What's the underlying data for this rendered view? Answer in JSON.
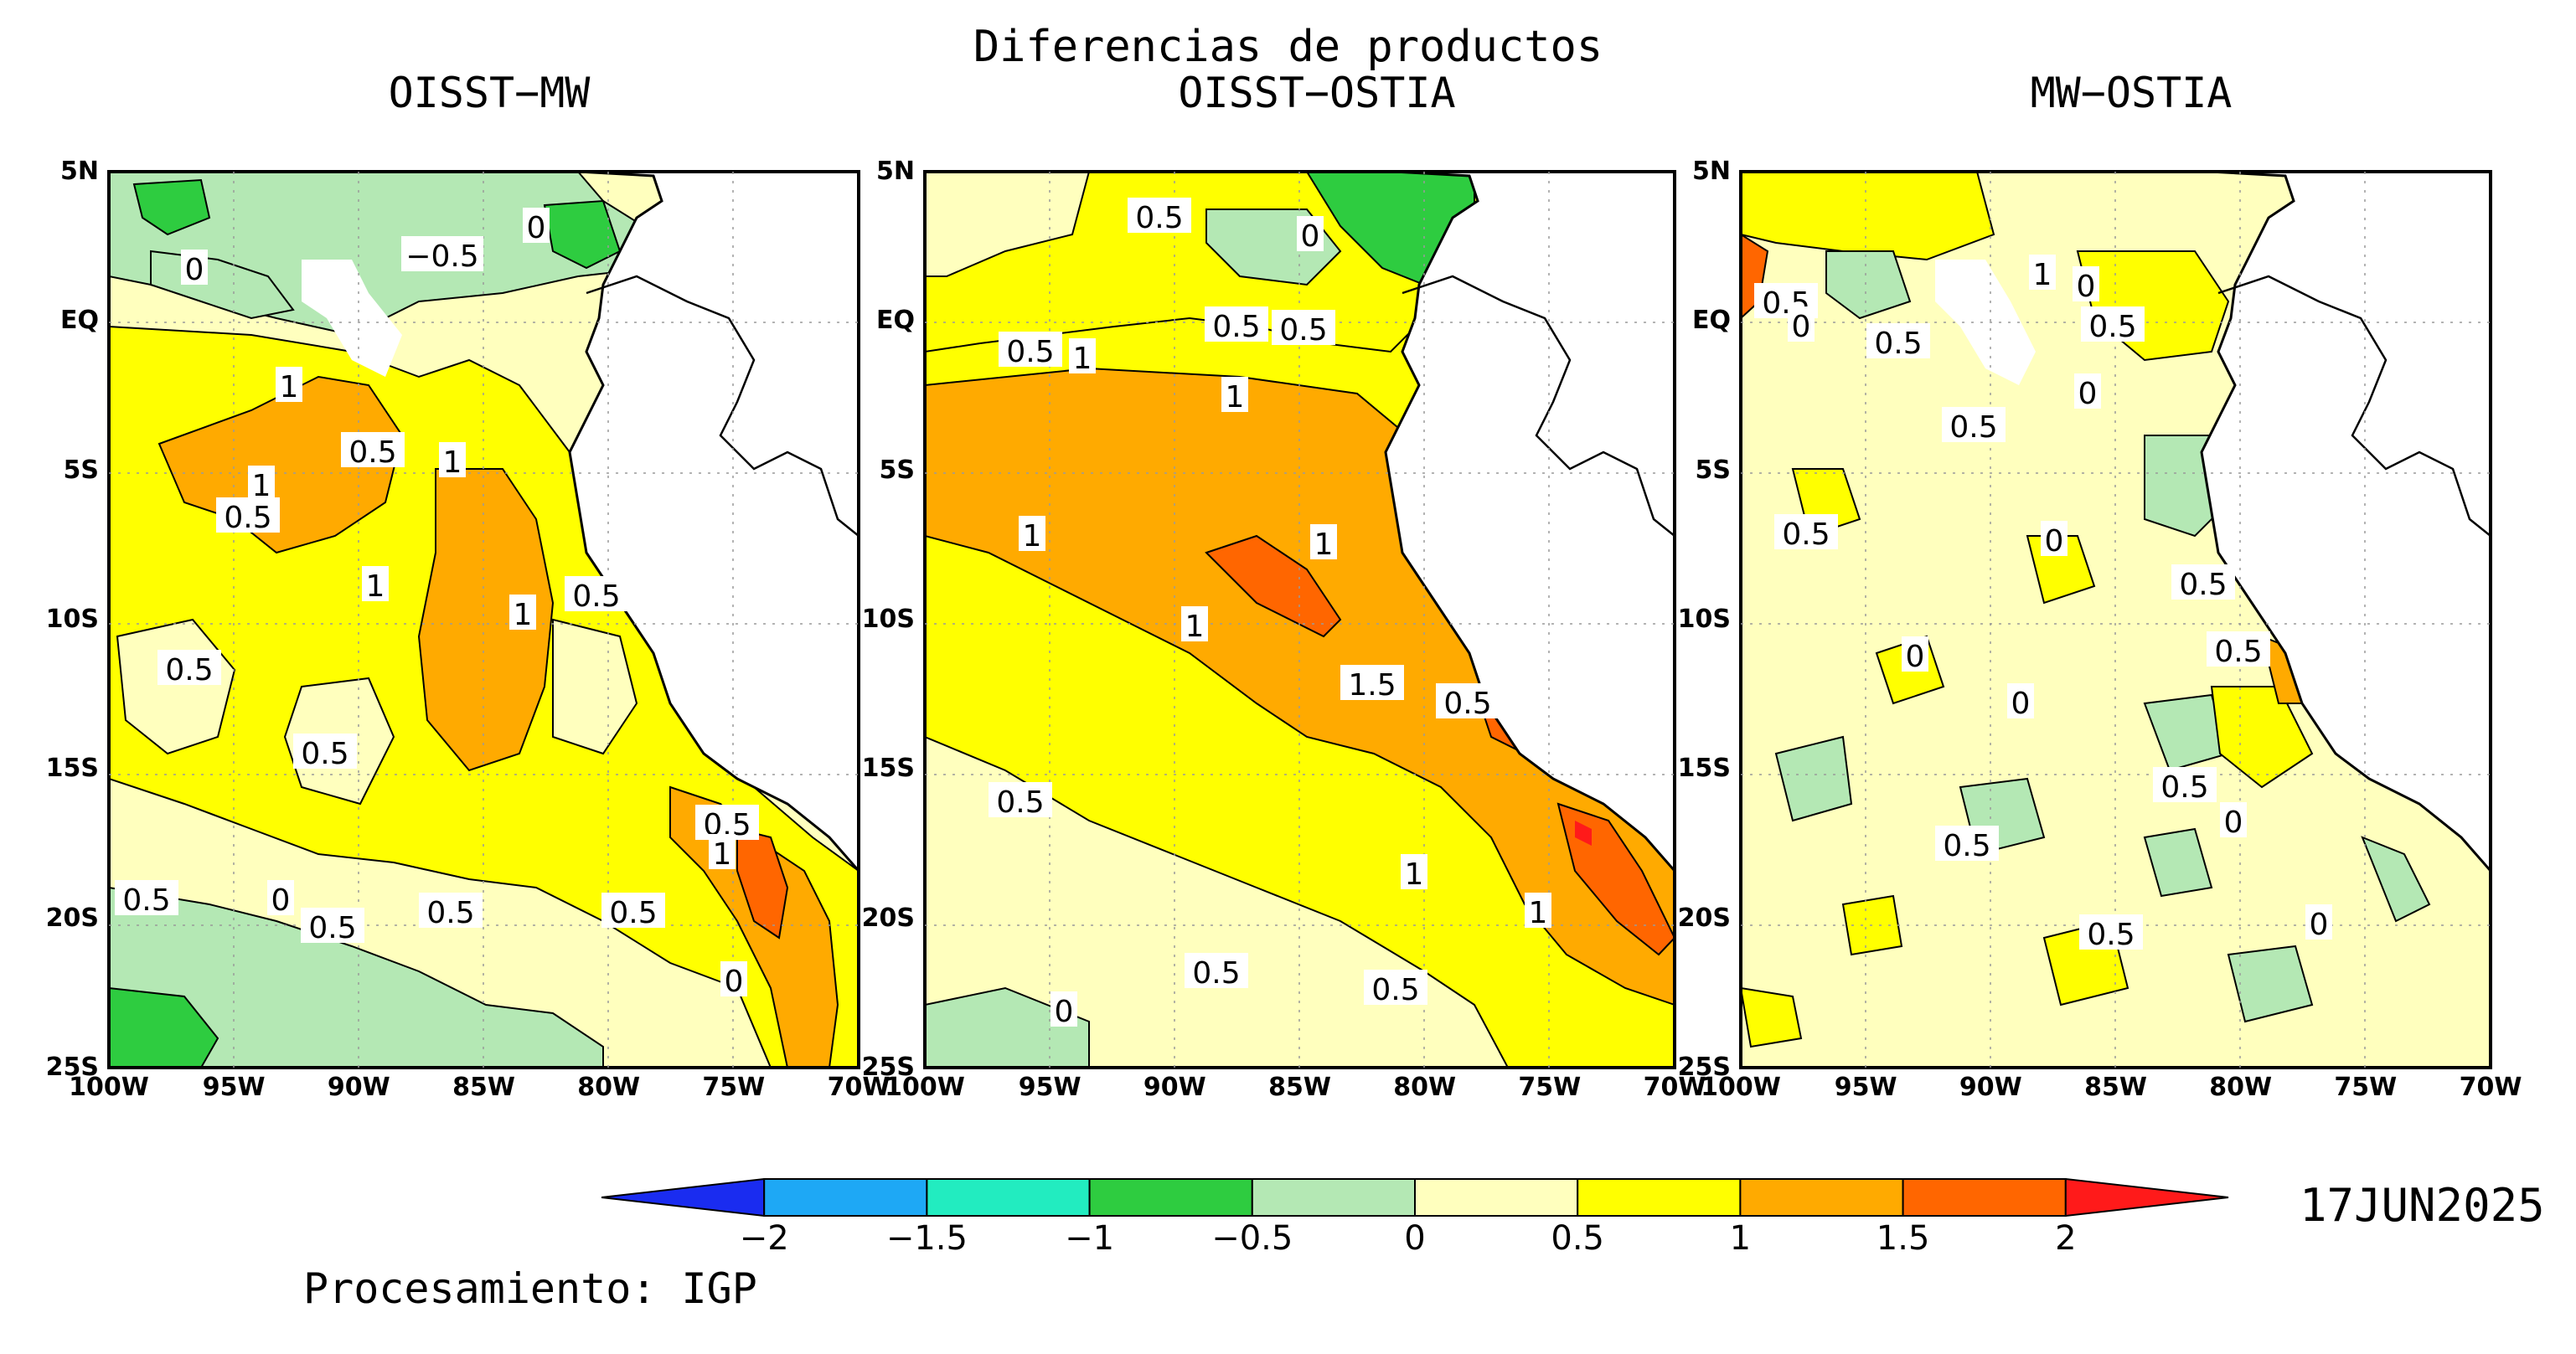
{
  "main_title": "Diferencias de productos",
  "panels": [
    {
      "title": "OISST−MW",
      "contour_labels": [
        "0",
        "−0.5",
        "0",
        "1",
        "0.5",
        "1",
        "1",
        "0.5",
        "1",
        "1",
        "0.5",
        "0.5",
        "0.5",
        "0",
        "0.5",
        "0.5",
        "0.5",
        "0.5",
        "1",
        "0",
        "0.5"
      ]
    },
    {
      "title": "OISST−OSTIA",
      "contour_labels": [
        "0.5",
        "0",
        "0.5",
        "0.5",
        "0.5",
        "1",
        "1",
        "1",
        "1",
        "1",
        "1.5",
        "0.5",
        "1",
        "1",
        "0.5",
        "0",
        "0.5",
        "0.5"
      ]
    },
    {
      "title": "MW−OSTIA",
      "contour_labels": [
        "1",
        "0",
        "0.5",
        "0",
        "0.5",
        "0.5",
        "0",
        "0.5",
        "0.5",
        "0",
        "0.5",
        "0",
        "0.5",
        "0",
        "0.5",
        "0",
        "0.5",
        "0",
        "0.5"
      ]
    }
  ],
  "lat_labels": [
    "5N",
    "EQ",
    "5S",
    "10S",
    "15S",
    "20S",
    "25S"
  ],
  "lon_labels": [
    "100W",
    "95W",
    "90W",
    "85W",
    "80W",
    "75W",
    "70W"
  ],
  "colorbar": {
    "colors": [
      "#1a2cf0",
      "#1ea8f5",
      "#22ecc0",
      "#2ecc40",
      "#b4e8b4",
      "#ffffbe",
      "#ffff00",
      "#ffaa00",
      "#ff6600",
      "#ff1a1a"
    ],
    "labels": [
      "−2",
      "−1.5",
      "−1",
      "−0.5",
      "0",
      "0.5",
      "1",
      "1.5",
      "2"
    ]
  },
  "date": "17JUN2025",
  "credit": "Procesamiento: IGP",
  "colors": {
    "land": "#ffffff",
    "coast": "#000000",
    "missing": "#ffffff"
  }
}
